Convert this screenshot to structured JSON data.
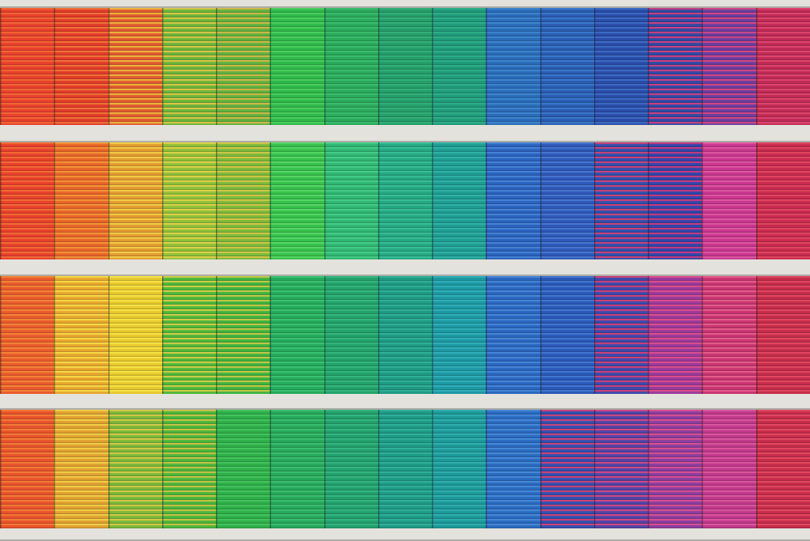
{
  "photo": {
    "subject": "facade",
    "bands": [
      {
        "name": "band-1",
        "panels": [
          {
            "base": "#e8402c",
            "stripe": "#f26a38"
          },
          {
            "base": "#e23a2a",
            "stripe": "#f07a3a"
          },
          {
            "base": "#e05a30",
            "stripe": "#f1c040"
          },
          {
            "base": "#6bb53a",
            "stripe": "#e8c84a"
          },
          {
            "base": "#5fb240",
            "stripe": "#e0b848"
          },
          {
            "base": "#2fb84a",
            "stripe": "#4ed060"
          },
          {
            "base": "#2aa95a",
            "stripe": "#3cc070"
          },
          {
            "base": "#249d6a",
            "stripe": "#36b27a"
          },
          {
            "base": "#1f9a7a",
            "stripe": "#30b08a"
          },
          {
            "base": "#2a6ab8",
            "stripe": "#3f88d0"
          },
          {
            "base": "#2a5cb0",
            "stripe": "#3c7cd0"
          },
          {
            "base": "#2a4ca8",
            "stripe": "#4070c8"
          },
          {
            "base": "#2f4aa6",
            "stripe": "#e0407a"
          },
          {
            "base": "#6a3ea0",
            "stripe": "#e04880"
          },
          {
            "base": "#c02a56",
            "stripe": "#e04a70"
          }
        ]
      },
      {
        "name": "band-2",
        "panels": [
          {
            "base": "#e8402c",
            "stripe": "#f47036"
          },
          {
            "base": "#e8642a",
            "stripe": "#f39a3a"
          },
          {
            "base": "#e29a30",
            "stripe": "#f2d24a"
          },
          {
            "base": "#8ec03a",
            "stripe": "#e8d24a"
          },
          {
            "base": "#7aba3c",
            "stripe": "#e0c648"
          },
          {
            "base": "#36c04a",
            "stripe": "#5ad86a"
          },
          {
            "base": "#2fb672",
            "stripe": "#48d08a"
          },
          {
            "base": "#24a882",
            "stripe": "#3cc09a"
          },
          {
            "base": "#1e9c92",
            "stripe": "#34b4a6"
          },
          {
            "base": "#2a62be",
            "stripe": "#4a86d8"
          },
          {
            "base": "#2e58b8",
            "stripe": "#4a7ad2"
          },
          {
            "base": "#2f50b0",
            "stripe": "#e0406e"
          },
          {
            "base": "#3046ac",
            "stripe": "#d83a78"
          },
          {
            "base": "#c8368e",
            "stripe": "#e05aa4"
          },
          {
            "base": "#c82a4e",
            "stripe": "#e24a62"
          }
        ]
      },
      {
        "name": "band-3",
        "panels": [
          {
            "base": "#ea5a2c",
            "stripe": "#f48a3a"
          },
          {
            "base": "#e8a62e",
            "stripe": "#f6e04a"
          },
          {
            "base": "#e6c82e",
            "stripe": "#f8e64a"
          },
          {
            "base": "#4eb83a",
            "stripe": "#e2d04a"
          },
          {
            "base": "#3eb440",
            "stripe": "#d8c848"
          },
          {
            "base": "#24aa5a",
            "stripe": "#3ec476"
          },
          {
            "base": "#22a26a",
            "stripe": "#38b882"
          },
          {
            "base": "#1e9a82",
            "stripe": "#34b29a"
          },
          {
            "base": "#1c98a2",
            "stripe": "#34b0ba"
          },
          {
            "base": "#2a66c0",
            "stripe": "#4a8ad8"
          },
          {
            "base": "#2a58b8",
            "stripe": "#467cd2"
          },
          {
            "base": "#3c4aae",
            "stripe": "#e0406e"
          },
          {
            "base": "#9a3a9c",
            "stripe": "#e4508a"
          },
          {
            "base": "#c83470",
            "stripe": "#e8628e"
          },
          {
            "base": "#c42c4a",
            "stripe": "#e44a64"
          }
        ]
      },
      {
        "name": "band-4",
        "panels": [
          {
            "base": "#e8522c",
            "stripe": "#f48038"
          },
          {
            "base": "#e0a030",
            "stripe": "#f2d44a"
          },
          {
            "base": "#7ab83a",
            "stripe": "#e0cc4a"
          },
          {
            "base": "#4ab63c",
            "stripe": "#d8c448"
          },
          {
            "base": "#2eae48",
            "stripe": "#46c660"
          },
          {
            "base": "#26a85a",
            "stripe": "#3ec072"
          },
          {
            "base": "#22a06c",
            "stripe": "#38b884"
          },
          {
            "base": "#1e9a84",
            "stripe": "#34b29c"
          },
          {
            "base": "#1c9898",
            "stripe": "#34b0b0"
          },
          {
            "base": "#2a6ac0",
            "stripe": "#4a8cd8"
          },
          {
            "base": "#3250b2",
            "stripe": "#e0426e"
          },
          {
            "base": "#5044a8",
            "stripe": "#e04a80"
          },
          {
            "base": "#8a3ea0",
            "stripe": "#e2528e"
          },
          {
            "base": "#c0388a",
            "stripe": "#dc5aa0"
          },
          {
            "base": "#c62c4a",
            "stripe": "#e44c64"
          }
        ]
      }
    ],
    "frame_color": "#e4e2dc",
    "shadow_color": "#8a8a86"
  }
}
